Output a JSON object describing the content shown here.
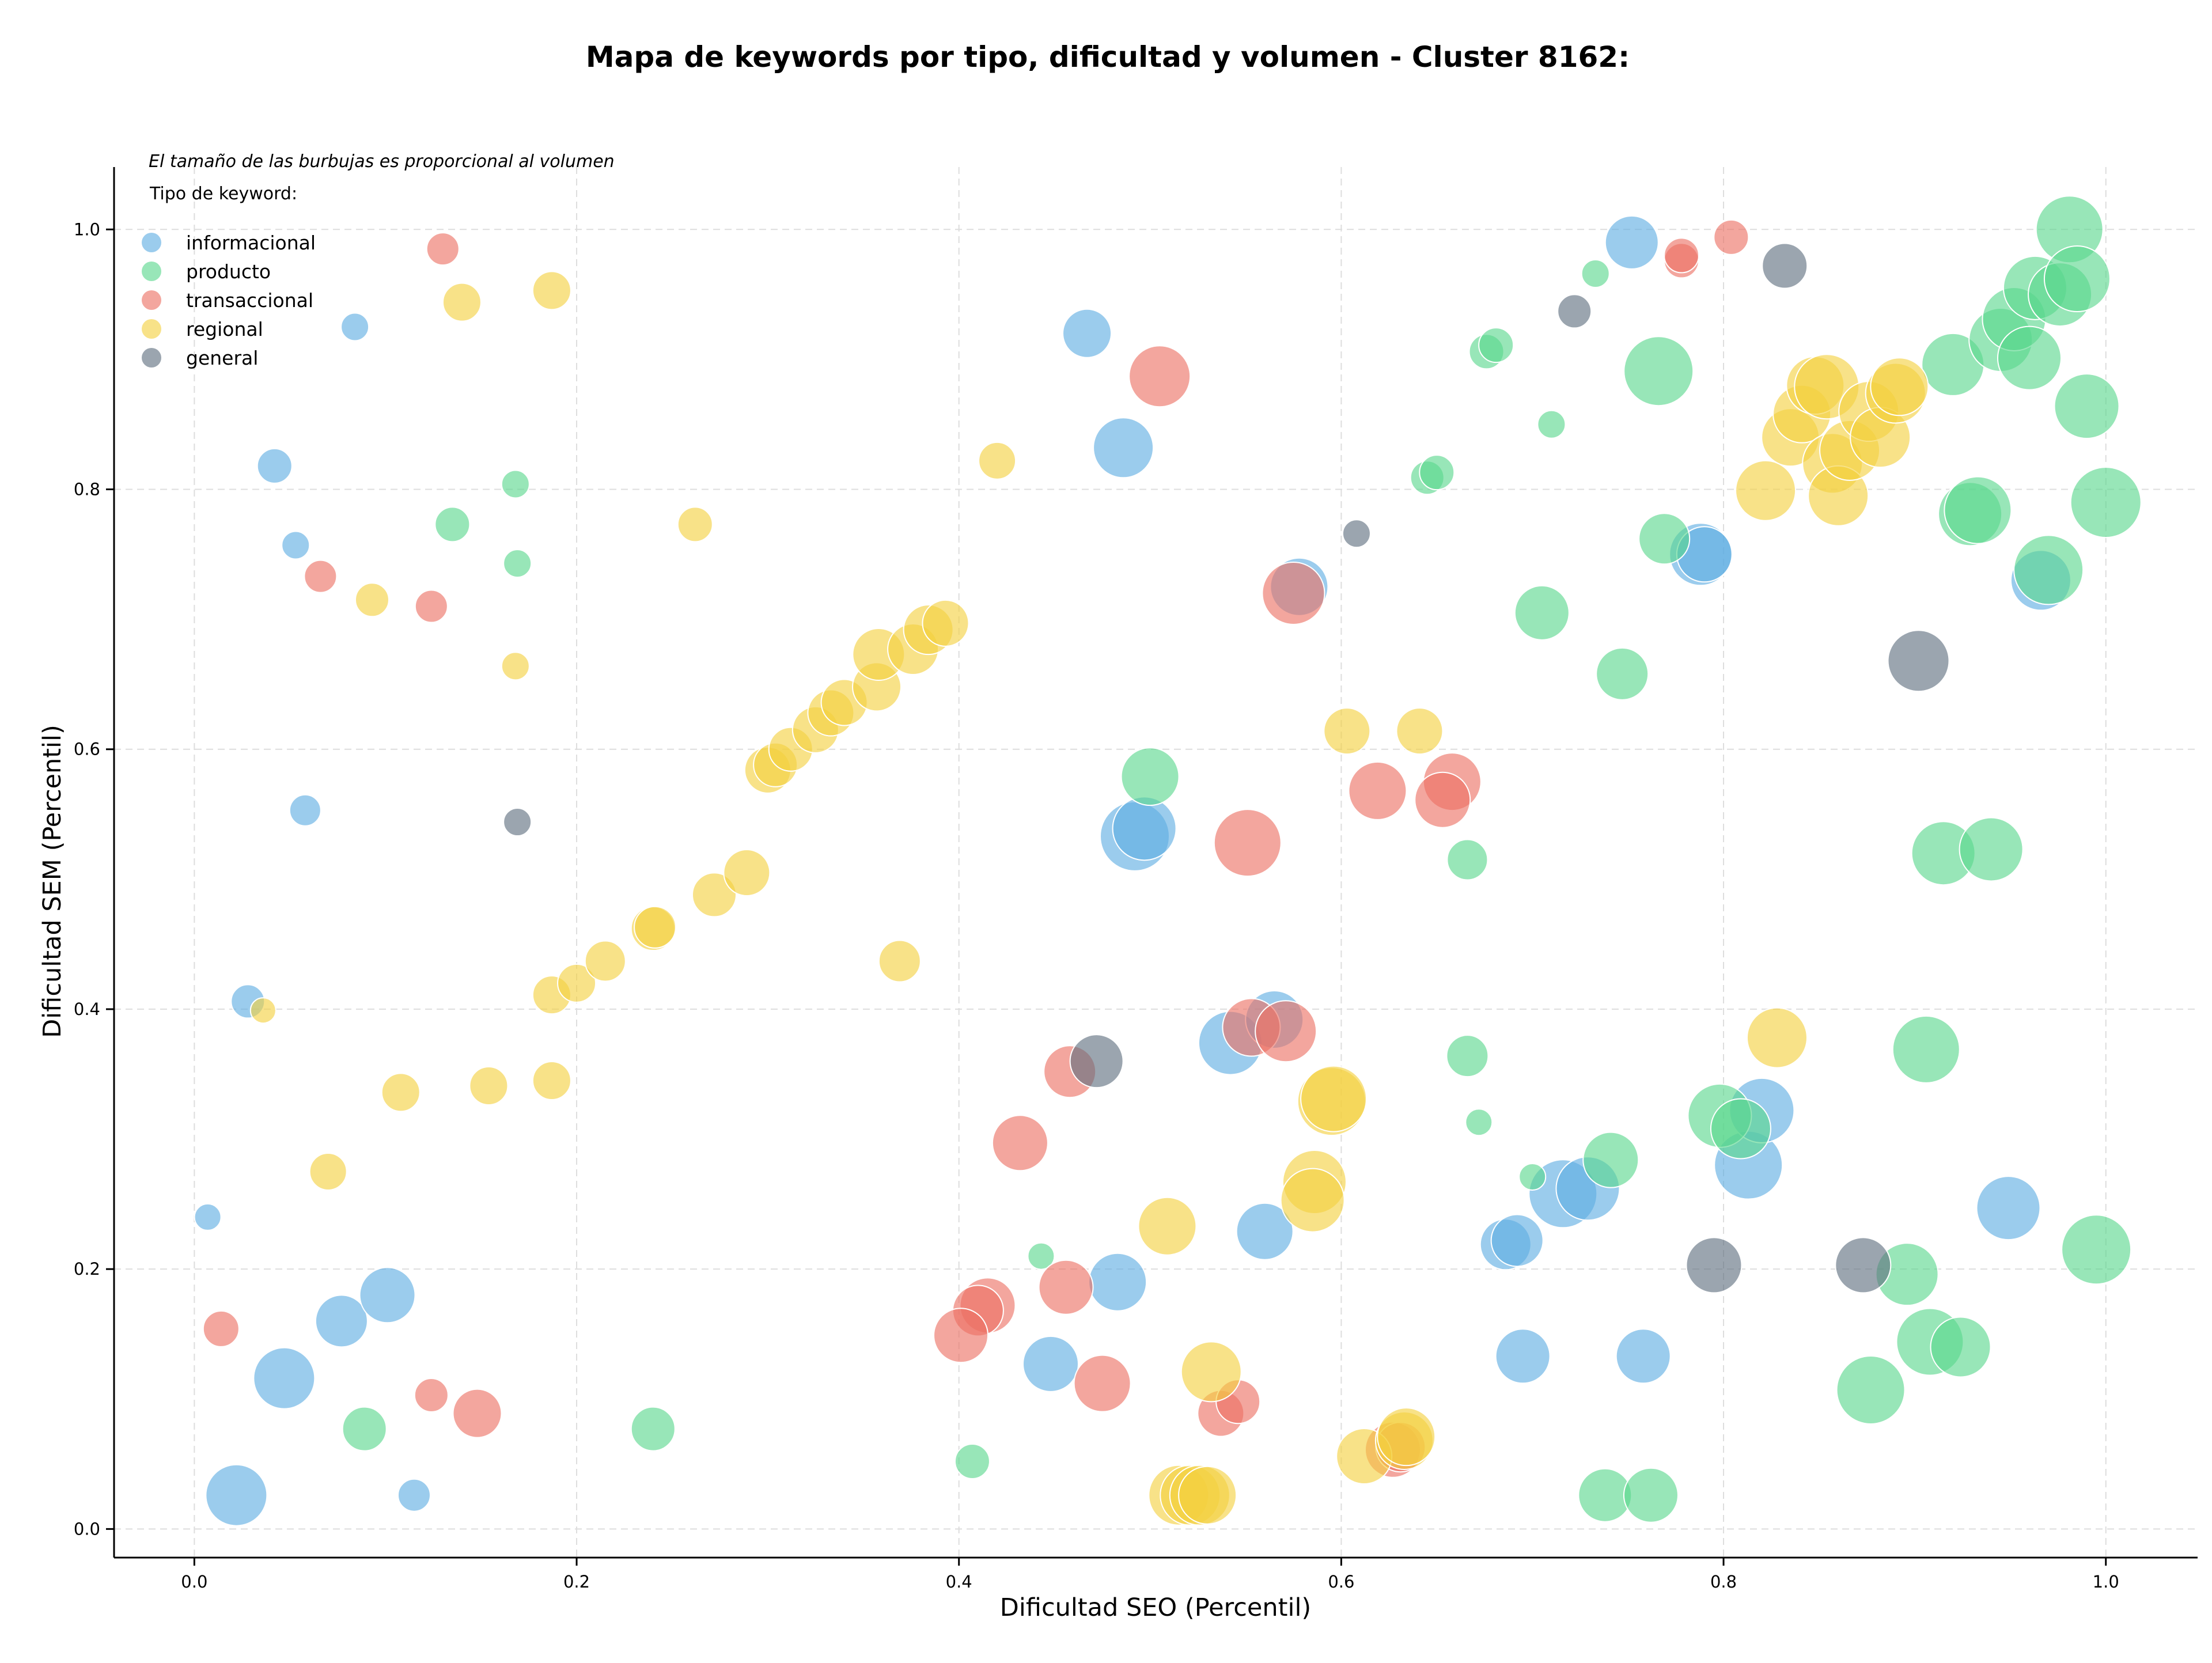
{
  "chart_data": {
    "type": "scatter",
    "title": "Mapa de keywords por tipo, dificultad y volumen - Cluster 8162:",
    "xlabel": "Dificultad SEO (Percentil)",
    "ylabel": "Dificultad SEM (Percentil)",
    "xlim": [
      -0.042,
      1.048
    ],
    "ylim": [
      -0.022,
      1.048
    ],
    "xticks": [
      0.0,
      0.2,
      0.4,
      0.6,
      0.8,
      1.0
    ],
    "yticks": [
      0.0,
      0.2,
      0.4,
      0.6,
      0.8,
      1.0
    ],
    "tick_labels": [
      "0.0",
      "0.2",
      "0.4",
      "0.6",
      "0.8",
      "1.0"
    ],
    "grid": true,
    "legend_position": "top-left",
    "note": "El tamaño de las burbujas es proporcional al volumen",
    "legend_title": "Tipo de keyword:",
    "series": [
      {
        "name": "informacional",
        "color": "#5dade2",
        "points": [
          [
            0.042,
            0.818,
            30
          ],
          [
            0.053,
            0.757,
            24
          ],
          [
            0.084,
            0.925,
            24
          ],
          [
            0.058,
            0.553,
            27
          ],
          [
            0.028,
            0.406,
            29
          ],
          [
            0.007,
            0.24,
            23
          ],
          [
            0.047,
            0.116,
            53
          ],
          [
            0.077,
            0.16,
            45
          ],
          [
            0.101,
            0.18,
            48
          ],
          [
            0.022,
            0.026,
            53
          ],
          [
            0.115,
            0.026,
            28
          ],
          [
            0.467,
            0.92,
            42
          ],
          [
            0.486,
            0.832,
            52
          ],
          [
            0.578,
            0.725,
            50
          ],
          [
            0.492,
            0.533,
            60
          ],
          [
            0.497,
            0.539,
            55
          ],
          [
            0.542,
            0.374,
            55
          ],
          [
            0.565,
            0.392,
            50
          ],
          [
            0.56,
            0.229,
            49
          ],
          [
            0.483,
            0.19,
            50
          ],
          [
            0.448,
            0.127,
            48
          ],
          [
            0.695,
            0.133,
            47
          ],
          [
            0.686,
            0.219,
            44
          ],
          [
            0.692,
            0.222,
            45
          ],
          [
            0.716,
            0.258,
            59
          ],
          [
            0.729,
            0.262,
            55
          ],
          [
            0.752,
            0.99,
            46
          ],
          [
            0.788,
            0.75,
            54
          ],
          [
            0.79,
            0.75,
            48
          ],
          [
            0.758,
            0.133,
            47
          ],
          [
            0.813,
            0.28,
            59
          ],
          [
            0.82,
            0.322,
            56
          ],
          [
            0.949,
            0.247,
            55
          ],
          [
            0.966,
            0.73,
            52
          ]
        ]
      },
      {
        "name": "producto",
        "color": "#58d68d",
        "points": [
          [
            0.168,
            0.804,
            24
          ],
          [
            0.169,
            0.743,
            24
          ],
          [
            0.135,
            0.773,
            30
          ],
          [
            0.089,
            0.077,
            38
          ],
          [
            0.24,
            0.077,
            38
          ],
          [
            0.407,
            0.052,
            30
          ],
          [
            0.443,
            0.21,
            23
          ],
          [
            0.5,
            0.579,
            50
          ],
          [
            0.645,
            0.809,
            29
          ],
          [
            0.65,
            0.813,
            30
          ],
          [
            0.666,
            0.515,
            35
          ],
          [
            0.666,
            0.364,
            36
          ],
          [
            0.672,
            0.313,
            23
          ],
          [
            0.676,
            0.906,
            30
          ],
          [
            0.681,
            0.911,
            30
          ],
          [
            0.7,
            0.271,
            23
          ],
          [
            0.705,
            0.705,
            47
          ],
          [
            0.71,
            0.85,
            24
          ],
          [
            0.733,
            0.966,
            24
          ],
          [
            0.738,
            0.026,
            46
          ],
          [
            0.741,
            0.284,
            48
          ],
          [
            0.747,
            0.658,
            45
          ],
          [
            0.762,
            0.026,
            47
          ],
          [
            0.766,
            0.891,
            60
          ],
          [
            0.769,
            0.762,
            44
          ],
          [
            0.798,
            0.318,
            55
          ],
          [
            0.809,
            0.308,
            52
          ],
          [
            0.877,
            0.107,
            59
          ],
          [
            0.896,
            0.196,
            54
          ],
          [
            0.906,
            0.369,
            58
          ],
          [
            0.908,
            0.144,
            58
          ],
          [
            0.915,
            0.52,
            55
          ],
          [
            0.92,
            0.896,
            54
          ],
          [
            0.924,
            0.14,
            52
          ],
          [
            0.929,
            0.781,
            55
          ],
          [
            0.933,
            0.784,
            58
          ],
          [
            0.94,
            0.523,
            55
          ],
          [
            0.945,
            0.915,
            55
          ],
          [
            0.952,
            0.931,
            55
          ],
          [
            0.96,
            0.901,
            55
          ],
          [
            0.963,
            0.955,
            55
          ],
          [
            0.97,
            0.738,
            60
          ],
          [
            0.976,
            0.95,
            55
          ],
          [
            0.981,
            1.0,
            58
          ],
          [
            0.985,
            0.962,
            57
          ],
          [
            0.99,
            0.864,
            56
          ],
          [
            0.995,
            0.215,
            60
          ],
          [
            1.0,
            0.79,
            61
          ]
        ]
      },
      {
        "name": "transaccional",
        "color": "#ec7063",
        "points": [
          [
            0.13,
            0.985,
            28
          ],
          [
            0.066,
            0.733,
            28
          ],
          [
            0.124,
            0.71,
            28
          ],
          [
            0.014,
            0.154,
            31
          ],
          [
            0.124,
            0.103,
            29
          ],
          [
            0.148,
            0.089,
            42
          ],
          [
            0.804,
            0.994,
            30
          ],
          [
            0.778,
            0.976,
            30
          ],
          [
            0.778,
            0.98,
            30
          ],
          [
            0.505,
            0.887,
            53
          ],
          [
            0.575,
            0.72,
            54
          ],
          [
            0.619,
            0.568,
            50
          ],
          [
            0.658,
            0.575,
            50
          ],
          [
            0.653,
            0.561,
            48
          ],
          [
            0.551,
            0.528,
            58
          ],
          [
            0.553,
            0.386,
            50
          ],
          [
            0.571,
            0.383,
            53
          ],
          [
            0.458,
            0.352,
            45
          ],
          [
            0.432,
            0.297,
            48
          ],
          [
            0.456,
            0.186,
            47
          ],
          [
            0.415,
            0.172,
            48
          ],
          [
            0.41,
            0.168,
            44
          ],
          [
            0.401,
            0.149,
            47
          ],
          [
            0.475,
            0.112,
            49
          ],
          [
            0.537,
            0.089,
            40
          ],
          [
            0.546,
            0.098,
            38
          ],
          [
            0.627,
            0.061,
            48
          ],
          [
            0.631,
            0.063,
            43
          ]
        ]
      },
      {
        "name": "regional",
        "color": "#f4d03f",
        "points": [
          [
            0.14,
            0.944,
            33
          ],
          [
            0.187,
            0.953,
            33
          ],
          [
            0.093,
            0.715,
            29
          ],
          [
            0.168,
            0.664,
            24
          ],
          [
            0.262,
            0.773,
            30
          ],
          [
            0.42,
            0.822,
            32
          ],
          [
            0.187,
            0.411,
            33
          ],
          [
            0.2,
            0.42,
            33
          ],
          [
            0.215,
            0.437,
            35
          ],
          [
            0.24,
            0.462,
            38
          ],
          [
            0.241,
            0.463,
            36
          ],
          [
            0.272,
            0.488,
            38
          ],
          [
            0.289,
            0.505,
            40
          ],
          [
            0.3,
            0.584,
            40
          ],
          [
            0.304,
            0.588,
            38
          ],
          [
            0.312,
            0.6,
            38
          ],
          [
            0.325,
            0.615,
            40
          ],
          [
            0.333,
            0.628,
            40
          ],
          [
            0.34,
            0.636,
            40
          ],
          [
            0.357,
            0.648,
            42
          ],
          [
            0.358,
            0.673,
            45
          ],
          [
            0.376,
            0.677,
            44
          ],
          [
            0.384,
            0.692,
            43
          ],
          [
            0.393,
            0.697,
            40
          ],
          [
            0.036,
            0.399,
            22
          ],
          [
            0.07,
            0.275,
            32
          ],
          [
            0.108,
            0.336,
            33
          ],
          [
            0.154,
            0.341,
            33
          ],
          [
            0.187,
            0.345,
            33
          ],
          [
            0.369,
            0.437,
            36
          ],
          [
            0.509,
            0.233,
            50
          ],
          [
            0.515,
            0.026,
            52
          ],
          [
            0.521,
            0.026,
            52
          ],
          [
            0.526,
            0.026,
            52
          ],
          [
            0.53,
            0.026,
            50
          ],
          [
            0.532,
            0.121,
            52
          ],
          [
            0.586,
            0.267,
            55
          ],
          [
            0.585,
            0.253,
            55
          ],
          [
            0.595,
            0.329,
            59
          ],
          [
            0.596,
            0.331,
            57
          ],
          [
            0.603,
            0.614,
            40
          ],
          [
            0.641,
            0.614,
            40
          ],
          [
            0.612,
            0.056,
            48
          ],
          [
            0.633,
            0.068,
            50
          ],
          [
            0.634,
            0.071,
            50
          ],
          [
            0.822,
            0.799,
            52
          ],
          [
            0.828,
            0.378,
            52
          ],
          [
            0.835,
            0.84,
            50
          ],
          [
            0.841,
            0.858,
            50
          ],
          [
            0.848,
            0.88,
            50
          ],
          [
            0.854,
            0.879,
            56
          ],
          [
            0.857,
            0.82,
            52
          ],
          [
            0.86,
            0.795,
            52
          ],
          [
            0.866,
            0.83,
            52
          ],
          [
            0.876,
            0.86,
            52
          ],
          [
            0.882,
            0.84,
            52
          ],
          [
            0.89,
            0.874,
            52
          ],
          [
            0.892,
            0.879,
            50
          ]
        ]
      },
      {
        "name": "general",
        "color": "#5d6d7e",
        "points": [
          [
            0.169,
            0.544,
            24
          ],
          [
            0.722,
            0.937,
            29
          ],
          [
            0.608,
            0.766,
            24
          ],
          [
            0.472,
            0.36,
            46
          ],
          [
            0.832,
            0.972,
            39
          ],
          [
            0.902,
            0.668,
            53
          ],
          [
            0.795,
            0.203,
            48
          ],
          [
            0.873,
            0.203,
            48
          ]
        ]
      }
    ]
  }
}
